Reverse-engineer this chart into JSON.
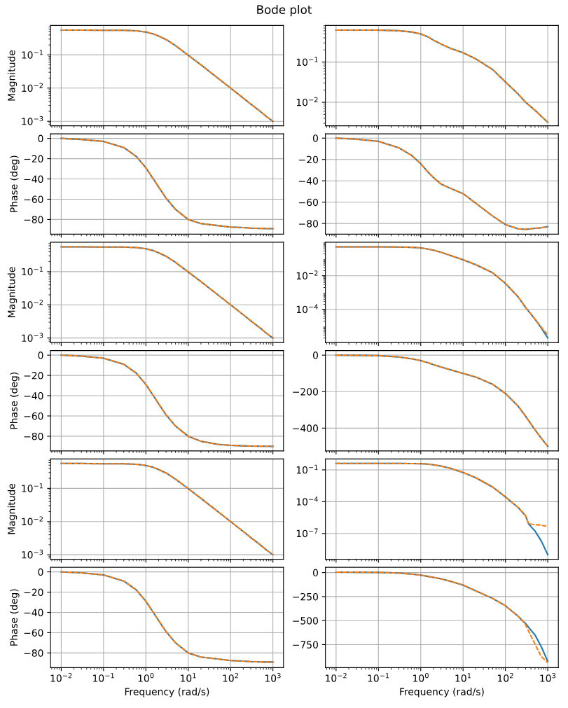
{
  "chart_data": [
    {
      "type": "line",
      "title": "Bode plot",
      "ylabel": "Magnitude",
      "log": "xy",
      "grid": true,
      "tick_labels": "y",
      "xlim": [
        0.0056,
        1778
      ],
      "xticks": [
        {
          "value": 0.01,
          "label": null
        },
        {
          "value": 0.1,
          "label": null
        },
        {
          "value": 1,
          "label": null
        },
        {
          "value": 10,
          "label": null
        },
        {
          "value": 100,
          "label": null
        },
        {
          "value": 1000,
          "label": null
        }
      ],
      "ylim": [
        0.00073,
        0.77
      ],
      "yticks": [
        {
          "value": 0.001,
          "label": "10$^{−3}$"
        },
        {
          "value": 0.01,
          "label": "10$^{−2}$"
        },
        {
          "value": 0.1,
          "label": "10$^{−1}$"
        }
      ],
      "x": [
        0.01,
        0.03,
        0.1,
        0.3,
        0.6,
        1,
        1.5,
        2,
        3,
        5,
        10,
        20,
        50,
        100,
        200,
        300,
        500,
        700,
        1000
      ],
      "series": [
        {
          "color": "#1f77b4",
          "line_style": "solid",
          "values": [
            0.56,
            0.56,
            0.55,
            0.55,
            0.53,
            0.49,
            0.43,
            0.37,
            0.29,
            0.19,
            0.098,
            0.05,
            0.02,
            0.01,
            0.005,
            0.0033,
            0.002,
            0.0014,
            0.001
          ]
        },
        {
          "color": "#ff7f0e",
          "line_style": "dashed",
          "values": [
            0.56,
            0.56,
            0.55,
            0.55,
            0.53,
            0.49,
            0.43,
            0.37,
            0.29,
            0.19,
            0.098,
            0.05,
            0.02,
            0.01,
            0.005,
            0.0033,
            0.002,
            0.0014,
            0.001
          ]
        }
      ]
    },
    {
      "type": "line",
      "log": "xy",
      "grid": true,
      "tick_labels": "y",
      "xlim": [
        0.0056,
        1778
      ],
      "xticks": [
        {
          "value": 0.01,
          "label": null
        },
        {
          "value": 0.1,
          "label": null
        },
        {
          "value": 1,
          "label": null
        },
        {
          "value": 10,
          "label": null
        },
        {
          "value": 100,
          "label": null
        },
        {
          "value": 1000,
          "label": null
        }
      ],
      "ylim": [
        0.0026,
        0.81
      ],
      "yticks": [
        {
          "value": 0.01,
          "label": "10$^{−2}$"
        },
        {
          "value": 0.1,
          "label": "10$^{−1}$"
        }
      ],
      "x": [
        0.01,
        0.03,
        0.1,
        0.3,
        0.6,
        1,
        1.5,
        2,
        3,
        5,
        10,
        20,
        50,
        100,
        200,
        300,
        500,
        700,
        1000
      ],
      "series": [
        {
          "color": "#1f77b4",
          "line_style": "solid",
          "values": [
            0.62,
            0.62,
            0.62,
            0.6,
            0.56,
            0.5,
            0.42,
            0.35,
            0.28,
            0.22,
            0.17,
            0.12,
            0.065,
            0.032,
            0.016,
            0.01,
            0.0063,
            0.0045,
            0.0032
          ]
        },
        {
          "color": "#ff7f0e",
          "line_style": "dashed",
          "values": [
            0.62,
            0.62,
            0.62,
            0.6,
            0.56,
            0.5,
            0.42,
            0.35,
            0.28,
            0.22,
            0.17,
            0.12,
            0.065,
            0.032,
            0.016,
            0.01,
            0.0063,
            0.0045,
            0.0032
          ]
        }
      ]
    },
    {
      "type": "line",
      "ylabel": "Phase (deg)",
      "log": "x",
      "grid": true,
      "tick_labels": "y",
      "xlim": [
        0.0056,
        1778
      ],
      "xticks": [
        {
          "value": 0.01,
          "label": null
        },
        {
          "value": 0.1,
          "label": null
        },
        {
          "value": 1,
          "label": null
        },
        {
          "value": 10,
          "label": null
        },
        {
          "value": 100,
          "label": null
        },
        {
          "value": 1000,
          "label": null
        }
      ],
      "ylim": [
        -94.5,
        4.5
      ],
      "yticks": [
        {
          "value": -80,
          "label": "−80"
        },
        {
          "value": -60,
          "label": "−60"
        },
        {
          "value": -40,
          "label": "−40"
        },
        {
          "value": -20,
          "label": "−20"
        },
        0
      ],
      "x": [
        0.01,
        0.03,
        0.1,
        0.3,
        0.6,
        1,
        1.5,
        2,
        3,
        5,
        10,
        20,
        50,
        100,
        200,
        300,
        500,
        700,
        1000
      ],
      "series": [
        {
          "color": "#1f77b4",
          "line_style": "solid",
          "values": [
            0,
            -1,
            -3,
            -9,
            -18,
            -29,
            -40,
            -48,
            -59,
            -70,
            -80,
            -84,
            -86,
            -87.5,
            -88,
            -88.5,
            -88.8,
            -89,
            -89
          ]
        },
        {
          "color": "#ff7f0e",
          "line_style": "dashed",
          "values": [
            0,
            -1,
            -3,
            -9,
            -18,
            -29,
            -40,
            -48,
            -59,
            -70,
            -80,
            -84,
            -86,
            -87.5,
            -88,
            -88.5,
            -88.8,
            -89,
            -89
          ]
        }
      ]
    },
    {
      "type": "line",
      "log": "x",
      "grid": true,
      "tick_labels": "y",
      "xlim": [
        0.0056,
        1778
      ],
      "xticks": [
        {
          "value": 0.01,
          "label": null
        },
        {
          "value": 0.1,
          "label": null
        },
        {
          "value": 1,
          "label": null
        },
        {
          "value": 10,
          "label": null
        },
        {
          "value": 100,
          "label": null
        },
        {
          "value": 1000,
          "label": null
        }
      ],
      "ylim": [
        -90,
        4
      ],
      "yticks": [
        {
          "value": -80,
          "label": "−80"
        },
        {
          "value": -60,
          "label": "−60"
        },
        {
          "value": -40,
          "label": "−40"
        },
        {
          "value": -20,
          "label": "−20"
        },
        0
      ],
      "x": [
        0.01,
        0.03,
        0.1,
        0.3,
        0.6,
        1,
        1.5,
        2,
        3,
        5,
        10,
        20,
        50,
        100,
        200,
        300,
        500,
        700,
        1000
      ],
      "series": [
        {
          "color": "#1f77b4",
          "line_style": "solid",
          "values": [
            0,
            -1,
            -3,
            -9,
            -16,
            -24,
            -32,
            -37,
            -43,
            -47,
            -52,
            -61,
            -73,
            -81,
            -85,
            -85.5,
            -84.5,
            -84,
            -83
          ]
        },
        {
          "color": "#ff7f0e",
          "line_style": "dashed",
          "values": [
            0,
            -1,
            -3,
            -9,
            -16,
            -24,
            -32,
            -37,
            -43,
            -47,
            -52,
            -61,
            -73,
            -81,
            -85,
            -85.5,
            -84.5,
            -84,
            -83
          ]
        }
      ]
    },
    {
      "type": "line",
      "ylabel": "Magnitude",
      "log": "xy",
      "grid": true,
      "tick_labels": "y",
      "xlim": [
        0.0056,
        1778
      ],
      "xticks": [
        {
          "value": 0.01,
          "label": null
        },
        {
          "value": 0.1,
          "label": null
        },
        {
          "value": 1,
          "label": null
        },
        {
          "value": 10,
          "label": null
        },
        {
          "value": 100,
          "label": null
        },
        {
          "value": 1000,
          "label": null
        }
      ],
      "ylim": [
        0.00073,
        0.77
      ],
      "yticks": [
        {
          "value": 0.001,
          "label": "10$^{−3}$"
        },
        {
          "value": 0.01,
          "label": "10$^{−2}$"
        },
        {
          "value": 0.1,
          "label": "10$^{−1}$"
        }
      ],
      "x": [
        0.01,
        0.03,
        0.1,
        0.3,
        0.6,
        1,
        1.5,
        2,
        3,
        5,
        10,
        20,
        50,
        100,
        200,
        300,
        500,
        700,
        1000
      ],
      "series": [
        {
          "color": "#1f77b4",
          "line_style": "solid",
          "values": [
            0.56,
            0.56,
            0.55,
            0.55,
            0.53,
            0.49,
            0.43,
            0.37,
            0.29,
            0.19,
            0.098,
            0.05,
            0.02,
            0.01,
            0.005,
            0.0033,
            0.002,
            0.0014,
            0.001
          ]
        },
        {
          "color": "#ff7f0e",
          "line_style": "dashed",
          "values": [
            0.56,
            0.56,
            0.55,
            0.55,
            0.53,
            0.49,
            0.43,
            0.37,
            0.29,
            0.19,
            0.098,
            0.05,
            0.02,
            0.01,
            0.005,
            0.0033,
            0.002,
            0.0014,
            0.001
          ]
        }
      ]
    },
    {
      "type": "line",
      "log": "xy",
      "grid": true,
      "tick_labels": "y",
      "xlim": [
        0.0056,
        1778
      ],
      "xticks": [
        {
          "value": 0.01,
          "label": null
        },
        {
          "value": 0.1,
          "label": null
        },
        {
          "value": 1,
          "label": null
        },
        {
          "value": 10,
          "label": null
        },
        {
          "value": 100,
          "label": null
        },
        {
          "value": 1000,
          "label": null
        }
      ],
      "ylim": [
        1.07e-06,
        0.98
      ],
      "yticks": [
        {
          "value": 0.0001,
          "label": "10$^{−4}$"
        },
        {
          "value": 0.01,
          "label": "10$^{−2}$"
        }
      ],
      "x": [
        0.01,
        0.03,
        0.1,
        0.3,
        0.6,
        1,
        1.5,
        2,
        3,
        5,
        10,
        20,
        50,
        100,
        200,
        300,
        500,
        700,
        1000
      ],
      "series": [
        {
          "color": "#1f77b4",
          "line_style": "solid",
          "values": [
            0.52,
            0.52,
            0.52,
            0.51,
            0.49,
            0.45,
            0.38,
            0.33,
            0.25,
            0.16,
            0.089,
            0.045,
            0.015,
            0.0035,
            0.00055,
            0.00013,
            2.6e-05,
            8e-06,
            2e-06
          ]
        },
        {
          "color": "#ff7f0e",
          "line_style": "dashed",
          "values": [
            0.52,
            0.52,
            0.52,
            0.51,
            0.49,
            0.45,
            0.38,
            0.33,
            0.25,
            0.16,
            0.089,
            0.045,
            0.015,
            0.0035,
            0.00055,
            0.00013,
            2.6e-05,
            9e-06,
            3e-06
          ]
        }
      ]
    },
    {
      "type": "line",
      "ylabel": "Phase (deg)",
      "log": "x",
      "grid": true,
      "tick_labels": "y",
      "xlim": [
        0.0056,
        1778
      ],
      "xticks": [
        {
          "value": 0.01,
          "label": null
        },
        {
          "value": 0.1,
          "label": null
        },
        {
          "value": 1,
          "label": null
        },
        {
          "value": 10,
          "label": null
        },
        {
          "value": 100,
          "label": null
        },
        {
          "value": 1000,
          "label": null
        }
      ],
      "ylim": [
        -94.5,
        4.5
      ],
      "yticks": [
        {
          "value": -80,
          "label": "−80"
        },
        {
          "value": -60,
          "label": "−60"
        },
        {
          "value": -40,
          "label": "−40"
        },
        {
          "value": -20,
          "label": "−20"
        },
        0
      ],
      "x": [
        0.01,
        0.03,
        0.1,
        0.3,
        0.6,
        1,
        1.5,
        2,
        3,
        5,
        10,
        20,
        50,
        100,
        200,
        300,
        500,
        700,
        1000
      ],
      "series": [
        {
          "color": "#1f77b4",
          "line_style": "solid",
          "values": [
            0,
            -1,
            -3,
            -9,
            -18,
            -29,
            -40,
            -48,
            -59,
            -70,
            -80,
            -85,
            -88,
            -89,
            -89.5,
            -89.7,
            -89.8,
            -89.9,
            -90
          ]
        },
        {
          "color": "#ff7f0e",
          "line_style": "dashed",
          "values": [
            0,
            -1,
            -3,
            -9,
            -18,
            -29,
            -40,
            -48,
            -59,
            -70,
            -80,
            -85,
            -88,
            -89,
            -89.5,
            -89.7,
            -89.8,
            -89.9,
            -90
          ]
        }
      ]
    },
    {
      "type": "line",
      "log": "x",
      "grid": true,
      "tick_labels": "y",
      "xlim": [
        0.0056,
        1778
      ],
      "xticks": [
        {
          "value": 0.01,
          "label": null
        },
        {
          "value": 0.1,
          "label": null
        },
        {
          "value": 1,
          "label": null
        },
        {
          "value": 10,
          "label": null
        },
        {
          "value": 100,
          "label": null
        },
        {
          "value": 1000,
          "label": null
        }
      ],
      "ylim": [
        -525,
        25
      ],
      "yticks": [
        {
          "value": -400,
          "label": "−400"
        },
        {
          "value": -200,
          "label": "−200"
        },
        0
      ],
      "x": [
        0.01,
        0.03,
        0.1,
        0.3,
        0.6,
        1,
        1.5,
        2,
        3,
        5,
        10,
        20,
        50,
        100,
        200,
        300,
        500,
        700,
        1000
      ],
      "series": [
        {
          "color": "#1f77b4",
          "line_style": "solid",
          "values": [
            0,
            -1,
            -3,
            -10,
            -20,
            -30,
            -42,
            -52,
            -65,
            -80,
            -100,
            -120,
            -160,
            -210,
            -280,
            -335,
            -410,
            -455,
            -500
          ]
        },
        {
          "color": "#ff7f0e",
          "line_style": "dashed",
          "values": [
            0,
            -1,
            -3,
            -10,
            -20,
            -30,
            -42,
            -52,
            -65,
            -80,
            -100,
            -120,
            -160,
            -210,
            -280,
            -335,
            -410,
            -455,
            -500
          ]
        }
      ]
    },
    {
      "type": "line",
      "ylabel": "Magnitude",
      "log": "xy",
      "grid": true,
      "tick_labels": "y",
      "xlim": [
        0.0056,
        1778
      ],
      "xticks": [
        {
          "value": 0.01,
          "label": null
        },
        {
          "value": 0.1,
          "label": null
        },
        {
          "value": 1,
          "label": null
        },
        {
          "value": 10,
          "label": null
        },
        {
          "value": 100,
          "label": null
        },
        {
          "value": 1000,
          "label": null
        }
      ],
      "ylim": [
        0.00073,
        0.77
      ],
      "yticks": [
        {
          "value": 0.001,
          "label": "10$^{−3}$"
        },
        {
          "value": 0.01,
          "label": "10$^{−2}$"
        },
        {
          "value": 0.1,
          "label": "10$^{−1}$"
        }
      ],
      "x": [
        0.01,
        0.03,
        0.1,
        0.3,
        0.6,
        1,
        1.5,
        2,
        3,
        5,
        10,
        20,
        50,
        100,
        200,
        300,
        500,
        700,
        1000
      ],
      "series": [
        {
          "color": "#1f77b4",
          "line_style": "solid",
          "values": [
            0.56,
            0.56,
            0.55,
            0.55,
            0.53,
            0.49,
            0.43,
            0.37,
            0.29,
            0.19,
            0.098,
            0.05,
            0.02,
            0.01,
            0.005,
            0.0033,
            0.002,
            0.0014,
            0.001
          ]
        },
        {
          "color": "#ff7f0e",
          "line_style": "dashed",
          "values": [
            0.56,
            0.56,
            0.55,
            0.55,
            0.53,
            0.49,
            0.43,
            0.37,
            0.29,
            0.19,
            0.098,
            0.05,
            0.02,
            0.01,
            0.005,
            0.0033,
            0.002,
            0.0014,
            0.001
          ]
        }
      ]
    },
    {
      "type": "line",
      "log": "xy",
      "grid": true,
      "tick_labels": "y",
      "xlim": [
        0.0056,
        1778
      ],
      "xticks": [
        {
          "value": 0.01,
          "label": null
        },
        {
          "value": 0.1,
          "label": null
        },
        {
          "value": 1,
          "label": null
        },
        {
          "value": 10,
          "label": null
        },
        {
          "value": 100,
          "label": null
        },
        {
          "value": 1000,
          "label": null
        }
      ],
      "ylim": [
        3.7e-10,
        1.07
      ],
      "yticks": [
        {
          "value": 1e-07,
          "label": "10$^{−7}$"
        },
        {
          "value": 0.0001,
          "label": "10$^{−4}$"
        },
        {
          "value": 0.1,
          "label": "10$^{−1}$"
        }
      ],
      "x": [
        0.01,
        0.03,
        0.1,
        0.3,
        0.6,
        1,
        1.5,
        2,
        3,
        5,
        10,
        20,
        50,
        100,
        200,
        300,
        350,
        400,
        500,
        700,
        1000
      ],
      "series": [
        {
          "color": "#1f77b4",
          "line_style": "solid",
          "values": [
            0.4,
            0.4,
            0.4,
            0.4,
            0.39,
            0.38,
            0.35,
            0.3,
            0.23,
            0.14,
            0.057,
            0.018,
            0.0024,
            0.00028,
            2.8e-05,
            4.7e-06,
            8.5e-07,
            4.5e-07,
            1.7e-07,
            2e-08,
            1e-09
          ]
        },
        {
          "color": "#ff7f0e",
          "line_style": "dashed",
          "values": [
            0.4,
            0.4,
            0.4,
            0.4,
            0.39,
            0.38,
            0.35,
            0.3,
            0.23,
            0.14,
            0.057,
            0.018,
            0.0024,
            0.00028,
            2.8e-05,
            4.7e-06,
            8.5e-07,
            7.5e-07,
            7e-07,
            6e-07,
            4.7e-07
          ]
        }
      ]
    },
    {
      "type": "line",
      "ylabel": "Phase (deg)",
      "xlabel": "Frequency (rad/s)",
      "log": "x",
      "grid": true,
      "xlim": [
        0.0056,
        1778
      ],
      "xticks": [
        {
          "value": 0.01,
          "label": "10$^{−2}$"
        },
        {
          "value": 0.1,
          "label": "10$^{−1}$"
        },
        {
          "value": 1,
          "label": "10$^{0}$"
        },
        {
          "value": 10,
          "label": "10$^{1}$"
        },
        {
          "value": 100,
          "label": "10$^{2}$"
        },
        {
          "value": 1000,
          "label": "10$^{3}$"
        }
      ],
      "ylim": [
        -94.5,
        4.5
      ],
      "yticks": [
        {
          "value": -80,
          "label": "−80"
        },
        {
          "value": -60,
          "label": "−60"
        },
        {
          "value": -40,
          "label": "−40"
        },
        {
          "value": -20,
          "label": "−20"
        },
        0
      ],
      "x": [
        0.01,
        0.03,
        0.1,
        0.3,
        0.6,
        1,
        1.5,
        2,
        3,
        5,
        10,
        20,
        50,
        100,
        200,
        300,
        500,
        700,
        1000
      ],
      "series": [
        {
          "color": "#1f77b4",
          "line_style": "solid",
          "values": [
            0,
            -1,
            -3,
            -9,
            -18,
            -29,
            -40,
            -48,
            -59,
            -70,
            -80,
            -84,
            -86,
            -87.5,
            -88,
            -88.5,
            -88.8,
            -89,
            -89
          ]
        },
        {
          "color": "#ff7f0e",
          "line_style": "dashed",
          "values": [
            0,
            -1,
            -3,
            -9,
            -18,
            -29,
            -40,
            -48,
            -59,
            -70,
            -80,
            -84,
            -86,
            -87.5,
            -88,
            -88.5,
            -88.8,
            -89,
            -89
          ]
        }
      ]
    },
    {
      "type": "line",
      "xlabel": "Frequency (rad/s)",
      "log": "x",
      "grid": true,
      "xlim": [
        0.0056,
        1778
      ],
      "xticks": [
        {
          "value": 0.01,
          "label": "10$^{−2}$"
        },
        {
          "value": 0.1,
          "label": "10$^{−1}$"
        },
        {
          "value": 1,
          "label": "10$^{0}$"
        },
        {
          "value": 10,
          "label": "10$^{1}$"
        },
        {
          "value": 100,
          "label": "10$^{2}$"
        },
        {
          "value": 1000,
          "label": "10$^{3}$"
        }
      ],
      "ylim": [
        -990,
        55
      ],
      "yticks": [
        {
          "value": -750,
          "label": "−750"
        },
        {
          "value": -500,
          "label": "−500"
        },
        {
          "value": -250,
          "label": "−250"
        },
        0
      ],
      "x": [
        0.01,
        0.03,
        0.1,
        0.3,
        0.6,
        1,
        1.5,
        2,
        3,
        5,
        10,
        20,
        50,
        100,
        200,
        250,
        300,
        400,
        500,
        700,
        1000
      ],
      "series": [
        {
          "color": "#1f77b4",
          "line_style": "solid",
          "values": [
            5,
            4,
            2,
            -5,
            -15,
            -27,
            -40,
            -50,
            -65,
            -90,
            -130,
            -190,
            -270,
            -345,
            -455,
            -500,
            -530,
            -600,
            -650,
            -770,
            -925
          ]
        },
        {
          "color": "#ff7f0e",
          "line_style": "dashed",
          "values": [
            5,
            4,
            2,
            -5,
            -15,
            -27,
            -40,
            -50,
            -65,
            -90,
            -130,
            -190,
            -270,
            -345,
            -455,
            -500,
            -545,
            -660,
            -745,
            -875,
            -937
          ]
        }
      ]
    }
  ]
}
